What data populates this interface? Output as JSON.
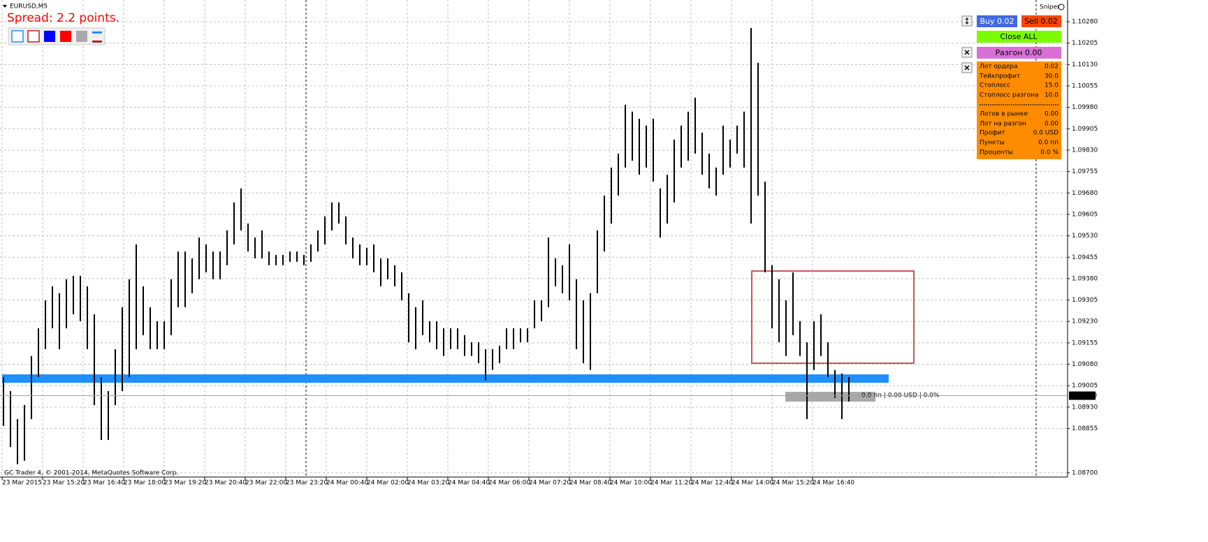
{
  "header": {
    "symbol": "EURUSD,M5",
    "spread": "Spread: 2.2 points.",
    "indicator": "Sniper"
  },
  "chart": {
    "type": "bar",
    "ylim": [
      1.08685,
      1.10356
    ],
    "yticks": [
      {
        "value": 1.1028,
        "label": "1.10280"
      },
      {
        "value": 1.10205,
        "label": "1.10205"
      },
      {
        "value": 1.1013,
        "label": "1.10130"
      },
      {
        "value": 1.10055,
        "label": "1.10055"
      },
      {
        "value": 1.0998,
        "label": "1.09980"
      },
      {
        "value": 1.09905,
        "label": "1.09905"
      },
      {
        "value": 1.0983,
        "label": "1.09830"
      },
      {
        "value": 1.09755,
        "label": "1.09755"
      },
      {
        "value": 1.0968,
        "label": "1.09680"
      },
      {
        "value": 1.09605,
        "label": "1.09605"
      },
      {
        "value": 1.0953,
        "label": "1.09530"
      },
      {
        "value": 1.09455,
        "label": "1.09455"
      },
      {
        "value": 1.0938,
        "label": "1.09380"
      },
      {
        "value": 1.09305,
        "label": "1.09305"
      },
      {
        "value": 1.0923,
        "label": "1.09230"
      },
      {
        "value": 1.09155,
        "label": "1.09155"
      },
      {
        "value": 1.0908,
        "label": "1.09080"
      },
      {
        "value": 1.09005,
        "label": "1.09005"
      },
      {
        "value": 1.0893,
        "label": "1.08930"
      },
      {
        "value": 1.08855,
        "label": "1.08855"
      },
      {
        "value": 1.087,
        "label": "1.08700"
      }
    ],
    "x_labels": [
      "23 Mar 2015",
      "23 Mar 15:20",
      "23 Mar 16:40",
      "23 Mar 18:00",
      "23 Mar 19:20",
      "23 Mar 20:40",
      "23 Mar 22:00",
      "23 Mar 23:20",
      "24 Mar 00:40",
      "24 Mar 02:00",
      "24 Mar 03:20",
      "24 Mar 04:40",
      "24 Mar 06:00",
      "24 Mar 07:20",
      "24 Mar 08:40",
      "24 Mar 10:00",
      "24 Mar 11:20",
      "24 Mar 12:40",
      "24 Mar 14:00",
      "24 Mar 15:20",
      "24 Mar 16:40"
    ],
    "high": [
      1.09035,
      1.08986,
      1.08888,
      1.08937,
      1.09109,
      1.09206,
      1.09304,
      1.09353,
      1.09329,
      1.09378,
      1.0939,
      1.0939,
      1.09353,
      1.09255,
      1.09035,
      1.08986,
      1.09133,
      1.0928,
      1.09378,
      1.095,
      1.09353,
      1.0928,
      1.09231,
      1.09231,
      1.09378,
      1.09475,
      1.09475,
      1.09451,
      1.09524,
      1.095,
      1.09475,
      1.09475,
      1.09549,
      1.09647,
      1.09696,
      1.09573,
      1.09524,
      1.09549,
      1.09475,
      1.09463,
      1.09463,
      1.09475,
      1.09475,
      1.09463,
      1.095,
      1.09549,
      1.09598,
      1.09647,
      1.09647,
      1.09598,
      1.09524,
      1.095,
      1.09488,
      1.095,
      1.09451,
      1.09451,
      1.09427,
      1.09402,
      1.09329,
      1.0928,
      1.09304,
      1.09231,
      1.09231,
      1.09206,
      1.09206,
      1.09206,
      1.09182,
      1.09157,
      1.09157,
      1.09133,
      1.09133,
      1.09145,
      1.09206,
      1.09206,
      1.09206,
      1.09206,
      1.09304,
      1.09304,
      1.09524,
      1.09451,
      1.09427,
      1.095,
      1.09378,
      1.09304,
      1.09329,
      1.09549,
      1.09671,
      1.09769,
      1.09818,
      1.09989,
      1.09965,
      1.0994,
      1.09916,
      1.0994,
      1.09696,
      1.09744,
      1.09867,
      1.09916,
      1.09965,
      1.10014,
      1.09891,
      1.09818,
      1.09769,
      1.09916,
      1.09867,
      1.09916,
      1.09965,
      1.10258,
      1.10136,
      1.0972,
      1.09427,
      1.09378,
      1.09304,
      1.09402,
      1.09231,
      1.09157,
      1.09231,
      1.09255,
      1.09157,
      1.0906,
      1.09048,
      1.09035
    ],
    "low": [
      1.08864,
      1.0879,
      1.0873,
      1.08742,
      1.08888,
      1.09035,
      1.09133,
      1.09206,
      1.09133,
      1.09206,
      1.09255,
      1.09231,
      1.09133,
      1.08937,
      1.08815,
      1.08815,
      1.08937,
      1.08986,
      1.09035,
      1.09133,
      1.09182,
      1.09133,
      1.09133,
      1.09133,
      1.09182,
      1.0928,
      1.0928,
      1.09329,
      1.09378,
      1.09402,
      1.09378,
      1.09378,
      1.09427,
      1.095,
      1.09549,
      1.09475,
      1.09451,
      1.09451,
      1.09427,
      1.09427,
      1.09427,
      1.09439,
      1.09439,
      1.09427,
      1.09439,
      1.09475,
      1.095,
      1.09549,
      1.09573,
      1.095,
      1.09451,
      1.09427,
      1.09427,
      1.09402,
      1.09353,
      1.09378,
      1.09353,
      1.09304,
      1.09157,
      1.09133,
      1.09182,
      1.09157,
      1.09133,
      1.09109,
      1.09133,
      1.09133,
      1.09109,
      1.09109,
      1.09084,
      1.09023,
      1.0906,
      1.09084,
      1.09133,
      1.09133,
      1.09157,
      1.09157,
      1.09206,
      1.09231,
      1.0928,
      1.09353,
      1.09329,
      1.09304,
      1.09133,
      1.09084,
      1.0906,
      1.09329,
      1.09475,
      1.09573,
      1.09671,
      1.09769,
      1.09793,
      1.09744,
      1.09769,
      1.0972,
      1.09524,
      1.09573,
      1.09647,
      1.09769,
      1.09793,
      1.09818,
      1.09744,
      1.09696,
      1.09671,
      1.09744,
      1.09769,
      1.09818,
      1.09769,
      1.09573,
      1.09671,
      1.09402,
      1.09206,
      1.09157,
      1.09109,
      1.09182,
      1.09109,
      1.08888,
      1.0906,
      1.09109,
      1.09035,
      1.08962,
      1.08888,
      1.0895
    ],
    "color": "#000000",
    "current_price": {
      "value": 1.0897,
      "label": "1.08970"
    },
    "position_info": "0.0 пп | 0.00 USD | 0.0%"
  },
  "panel": {
    "buy": "Buy 0.02",
    "sell": "Sell 0.02",
    "close_all": "Close ALL",
    "boost": "Разгон 0.00",
    "rows": [
      [
        "Лот ордера",
        "0.02"
      ],
      [
        "Тейкпрофит",
        "30.0"
      ],
      [
        "Стоплосс",
        "15.0"
      ],
      [
        "Стоплосс разгона",
        "10.0"
      ],
      [
        "Лотов в рынке",
        "0.00"
      ],
      [
        "Лот на разгон",
        "0.00"
      ],
      [
        "Профит",
        "0.0 USD"
      ],
      [
        "Пункты",
        "0.0 пп"
      ],
      [
        "Проценты",
        "0.0 %"
      ]
    ]
  },
  "footer": "GC Trader 4, © 2001-2014, MetaQuotes Software Corp."
}
